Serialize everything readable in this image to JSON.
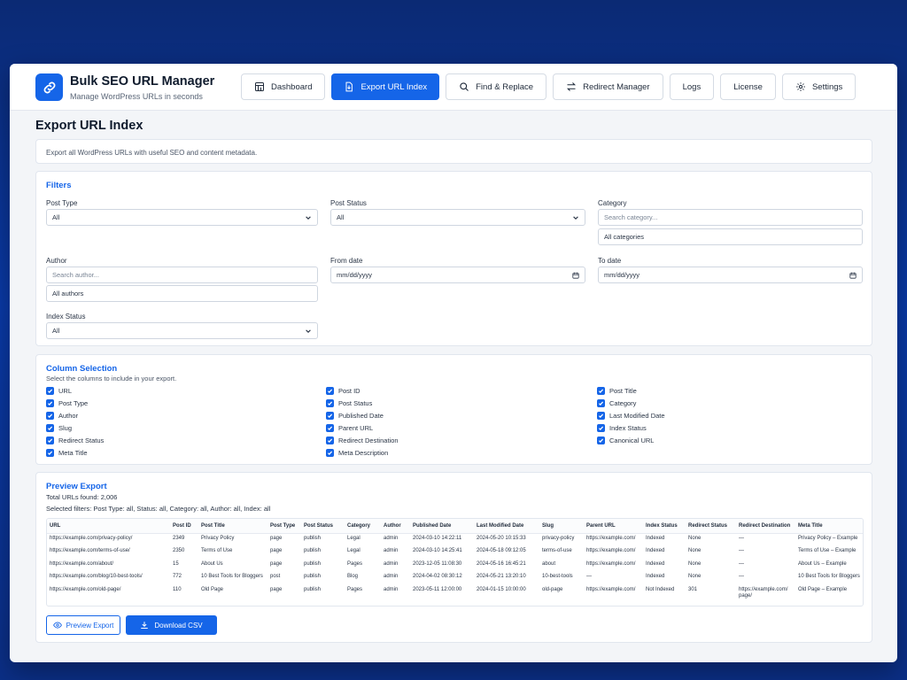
{
  "app": {
    "title": "Bulk SEO URL Manager",
    "subtitle": "Manage WordPress URLs in seconds"
  },
  "nav": [
    {
      "label": "Dashboard",
      "icon": "dashboard-icon"
    },
    {
      "label": "Export URL Index",
      "icon": "export-icon",
      "active": true
    },
    {
      "label": "Find & Replace",
      "icon": "search-icon"
    },
    {
      "label": "Redirect Manager",
      "icon": "redirect-icon"
    },
    {
      "label": "Logs"
    },
    {
      "label": "License"
    },
    {
      "label": "Settings",
      "icon": "gear-icon"
    }
  ],
  "page": {
    "title": "Export URL Index",
    "description": "Export all WordPress URLs with useful SEO and content metadata."
  },
  "filters": {
    "title": "Filters",
    "post_type": {
      "label": "Post Type",
      "value": "All"
    },
    "post_status": {
      "label": "Post Status",
      "value": "All"
    },
    "category": {
      "label": "Category",
      "placeholder": "Search category...",
      "value": "All categories"
    },
    "author": {
      "label": "Author",
      "placeholder": "Search author...",
      "value": "All authors"
    },
    "from_date": {
      "label": "From date",
      "placeholder": "mm/dd/yyyy"
    },
    "to_date": {
      "label": "To date",
      "placeholder": "mm/dd/yyyy"
    },
    "index_status": {
      "label": "Index Status",
      "value": "All"
    }
  },
  "columns": {
    "title": "Column Selection",
    "subtitle": "Select the columns to include in your export.",
    "col1": [
      "URL",
      "Post Type",
      "Author",
      "Slug",
      "Redirect Status",
      "Meta Title"
    ],
    "col2": [
      "Post ID",
      "Post Status",
      "Published Date",
      "Parent URL",
      "Redirect Destination",
      "Meta Description"
    ],
    "col3": [
      "Post Title",
      "Category",
      "Last Modified Date",
      "Index Status",
      "Canonical URL"
    ]
  },
  "preview": {
    "title": "Preview Export",
    "total": "Total URLs found: 2,006",
    "selected": "Selected filters:  Post Type: all, Status: all, Category: all, Author: all, Index: all",
    "headers": [
      "URL",
      "Post ID",
      "Post Title",
      "Post Type",
      "Post Status",
      "Category",
      "Author",
      "Published Date",
      "Last Modified Date",
      "Slug",
      "Parent URL",
      "Index Status",
      "Redirect Status",
      "Redirect Destination",
      "Meta Title"
    ],
    "rows": [
      [
        "https://example.com/privacy-policy/",
        "2349",
        "Privacy Policy",
        "page",
        "publish",
        "Legal",
        "admin",
        "2024-03-10 14:22:11",
        "2024-05-20 10:15:33",
        "privacy-policy",
        "https://example.com/",
        "Indexed",
        "None",
        "—",
        "Privacy Policy – Example"
      ],
      [
        "https://example.com/terms-of-use/",
        "2350",
        "Terms of Use",
        "page",
        "publish",
        "Legal",
        "admin",
        "2024-03-10 14:25:41",
        "2024-05-18 09:12:05",
        "terms-of-use",
        "https://example.com/",
        "Indexed",
        "None",
        "—",
        "Terms of Use – Example"
      ],
      [
        "https://example.com/about/",
        "15",
        "About Us",
        "page",
        "publish",
        "Pages",
        "admin",
        "2023-12-05 11:08:30",
        "2024-05-16 16:45:21",
        "about",
        "https://example.com/",
        "Indexed",
        "None",
        "—",
        "About Us – Example"
      ],
      [
        "https://example.com/blog/10-best-tools/",
        "772",
        "10 Best Tools for Bloggers",
        "post",
        "publish",
        "Blog",
        "admin",
        "2024-04-02 08:30:12",
        "2024-05-21 13:20:10",
        "10-best-tools",
        "—",
        "Indexed",
        "None",
        "—",
        "10 Best Tools for Bloggers"
      ],
      [
        "https://example.com/old-page/",
        "110",
        "Old Page",
        "page",
        "publish",
        "Pages",
        "admin",
        "2023-05-11 12:00:00",
        "2024-01-15 10:00:00",
        "old-page",
        "https://example.com/",
        "Not Indexed",
        "301",
        "https://example.com/ page/",
        "Old Page – Example"
      ]
    ],
    "preview_button": "Preview Export",
    "download_button": "Download CSV"
  },
  "colors": {
    "accent": "#1565e8",
    "background": "#0b2f86"
  }
}
